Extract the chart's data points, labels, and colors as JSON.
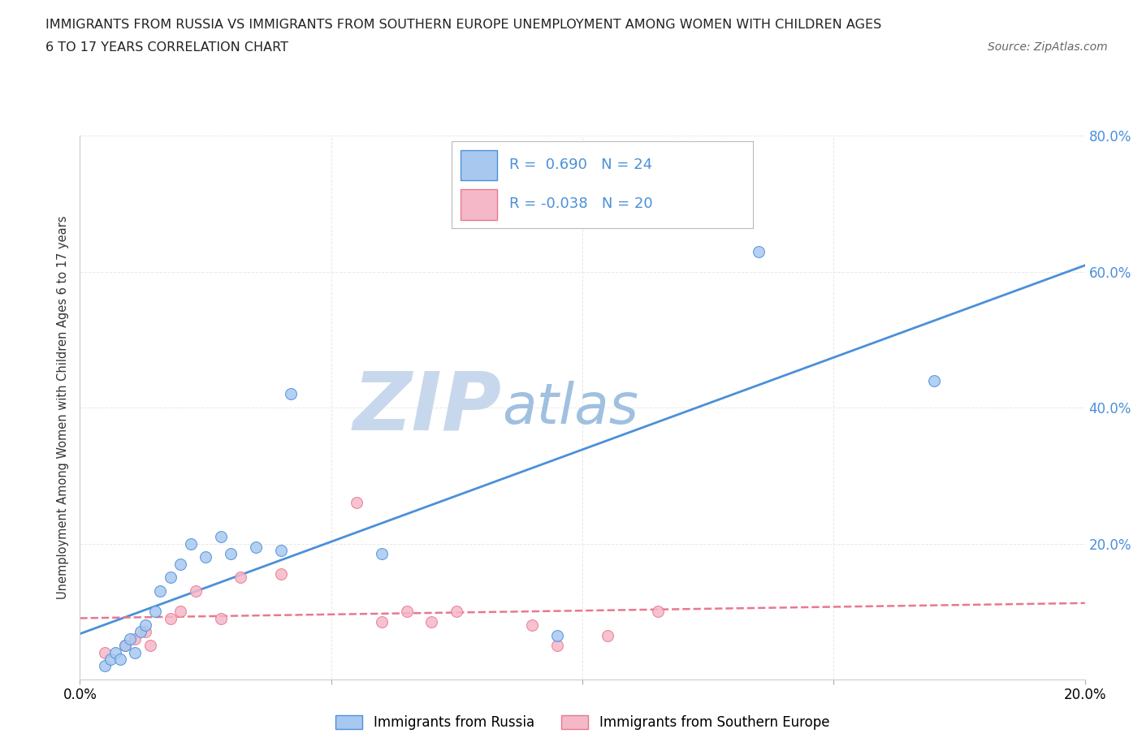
{
  "title_line1": "IMMIGRANTS FROM RUSSIA VS IMMIGRANTS FROM SOUTHERN EUROPE UNEMPLOYMENT AMONG WOMEN WITH CHILDREN AGES",
  "title_line2": "6 TO 17 YEARS CORRELATION CHART",
  "source_text": "Source: ZipAtlas.com",
  "ylabel": "Unemployment Among Women with Children Ages 6 to 17 years",
  "xlim": [
    0.0,
    0.2
  ],
  "ylim": [
    0.0,
    0.8
  ],
  "legend_russia_R": "0.690",
  "legend_russia_N": "24",
  "legend_s_europe_R": "-0.038",
  "legend_s_europe_N": "20",
  "color_russia": "#a8c8f0",
  "color_s_europe": "#f5b8c8",
  "color_russia_line": "#4a90d9",
  "color_s_europe_line": "#e87890",
  "watermark_zip": "ZIP",
  "watermark_atlas": "atlas",
  "watermark_color_zip": "#c8d8ec",
  "watermark_color_atlas": "#a0c0e0",
  "russia_x": [
    0.005,
    0.006,
    0.007,
    0.008,
    0.009,
    0.01,
    0.011,
    0.012,
    0.013,
    0.015,
    0.016,
    0.018,
    0.02,
    0.022,
    0.025,
    0.028,
    0.03,
    0.035,
    0.04,
    0.042,
    0.06,
    0.095,
    0.135,
    0.17
  ],
  "russia_y": [
    0.02,
    0.03,
    0.04,
    0.03,
    0.05,
    0.06,
    0.04,
    0.07,
    0.08,
    0.1,
    0.13,
    0.15,
    0.17,
    0.2,
    0.18,
    0.21,
    0.185,
    0.195,
    0.19,
    0.42,
    0.185,
    0.065,
    0.63,
    0.44
  ],
  "s_europe_x": [
    0.005,
    0.009,
    0.011,
    0.013,
    0.014,
    0.018,
    0.02,
    0.023,
    0.028,
    0.032,
    0.04,
    0.055,
    0.06,
    0.065,
    0.07,
    0.075,
    0.09,
    0.095,
    0.105,
    0.115
  ],
  "s_europe_y": [
    0.04,
    0.05,
    0.06,
    0.07,
    0.05,
    0.09,
    0.1,
    0.13,
    0.09,
    0.15,
    0.155,
    0.26,
    0.085,
    0.1,
    0.085,
    0.1,
    0.08,
    0.05,
    0.065,
    0.1
  ],
  "grid_color": "#e8e8e8",
  "background_color": "#ffffff",
  "legend_bottom_labels": [
    "Immigrants from Russia",
    "Immigrants from Southern Europe"
  ]
}
